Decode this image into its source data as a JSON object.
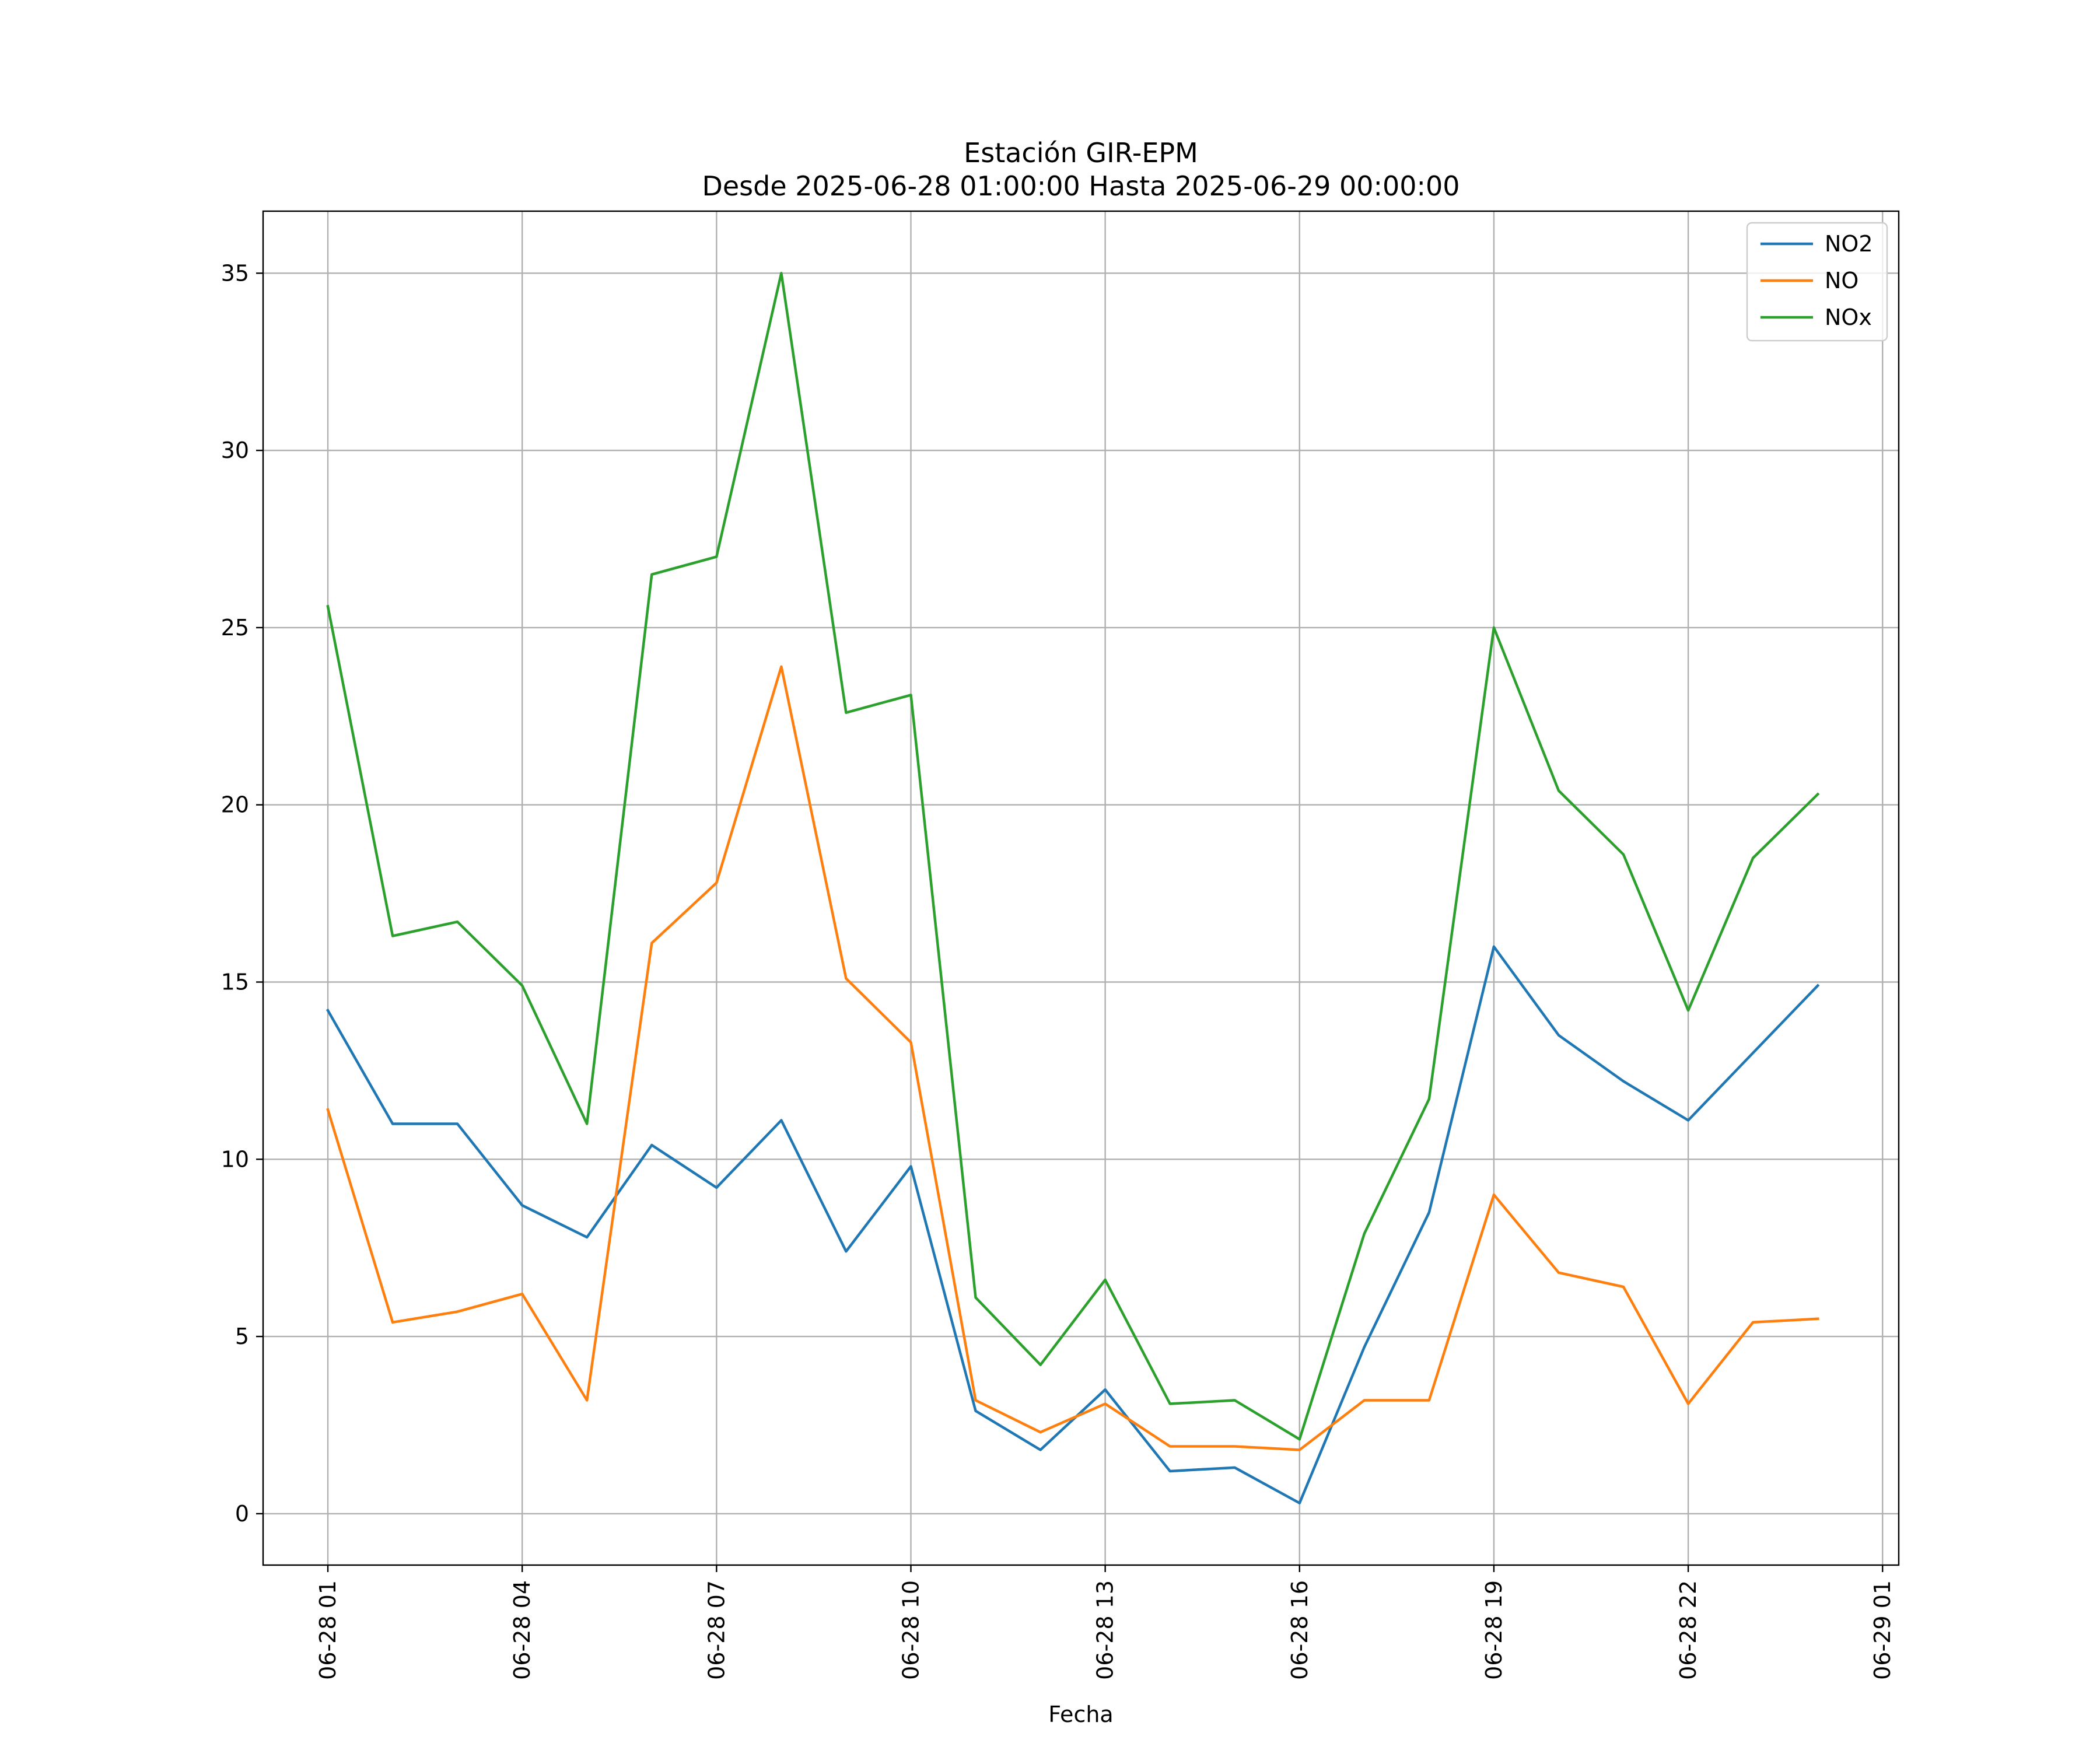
{
  "chart_data": {
    "type": "line",
    "title": "Estación GIR-EPM",
    "subtitle": "Desde 2025-06-28 01:00:00 Hasta 2025-06-29 00:00:00",
    "xlabel": "Fecha",
    "ylabel": "",
    "x": [
      "2025-06-28 01:00",
      "2025-06-28 02:00",
      "2025-06-28 03:00",
      "2025-06-28 04:00",
      "2025-06-28 05:00",
      "2025-06-28 06:00",
      "2025-06-28 07:00",
      "2025-06-28 08:00",
      "2025-06-28 09:00",
      "2025-06-28 10:00",
      "2025-06-28 11:00",
      "2025-06-28 12:00",
      "2025-06-28 13:00",
      "2025-06-28 14:00",
      "2025-06-28 15:00",
      "2025-06-28 16:00",
      "2025-06-28 17:00",
      "2025-06-28 18:00",
      "2025-06-28 19:00",
      "2025-06-28 20:00",
      "2025-06-28 21:00",
      "2025-06-28 22:00",
      "2025-06-28 23:00",
      "2025-06-29 00:00"
    ],
    "xlim": [
      "2025-06-28 00:00",
      "2025-06-29 01:15"
    ],
    "xticks": [
      "2025-06-28 01:00",
      "2025-06-28 04:00",
      "2025-06-28 07:00",
      "2025-06-28 10:00",
      "2025-06-28 13:00",
      "2025-06-28 16:00",
      "2025-06-28 19:00",
      "2025-06-28 22:00",
      "2025-06-29 01:00"
    ],
    "xtick_labels": [
      "06-28 01",
      "06-28 04",
      "06-28 07",
      "06-28 10",
      "06-28 13",
      "06-28 16",
      "06-28 19",
      "06-28 22",
      "06-29 01"
    ],
    "ylim": [
      -1.45,
      36.75
    ],
    "yticks": [
      0,
      5,
      10,
      15,
      20,
      25,
      30,
      35
    ],
    "ytick_labels": [
      "0",
      "5",
      "10",
      "15",
      "20",
      "25",
      "30",
      "35"
    ],
    "grid": true,
    "legend_position": "top-right",
    "series": [
      {
        "name": "NO2",
        "color": "#1f77b4",
        "values": [
          14.2,
          11.0,
          11.0,
          8.7,
          7.8,
          10.4,
          9.2,
          11.1,
          7.4,
          9.8,
          2.9,
          1.8,
          3.5,
          1.2,
          1.3,
          0.3,
          4.7,
          8.5,
          16.0,
          13.5,
          12.2,
          11.1,
          13.0,
          14.9
        ]
      },
      {
        "name": "NO",
        "color": "#ff7f0e",
        "values": [
          11.4,
          5.4,
          5.7,
          6.2,
          3.2,
          16.1,
          17.8,
          23.9,
          15.1,
          13.3,
          3.2,
          2.3,
          3.1,
          1.9,
          1.9,
          1.8,
          3.2,
          3.2,
          9.0,
          6.8,
          6.4,
          3.1,
          5.4,
          5.5
        ]
      },
      {
        "name": "NOx",
        "color": "#2ca02c",
        "values": [
          25.6,
          16.3,
          16.7,
          14.9,
          11.0,
          26.5,
          27.0,
          35.0,
          22.6,
          23.1,
          6.1,
          4.2,
          6.6,
          3.1,
          3.2,
          2.1,
          7.9,
          11.7,
          25.0,
          20.4,
          18.6,
          14.2,
          18.5,
          20.3
        ]
      }
    ]
  }
}
